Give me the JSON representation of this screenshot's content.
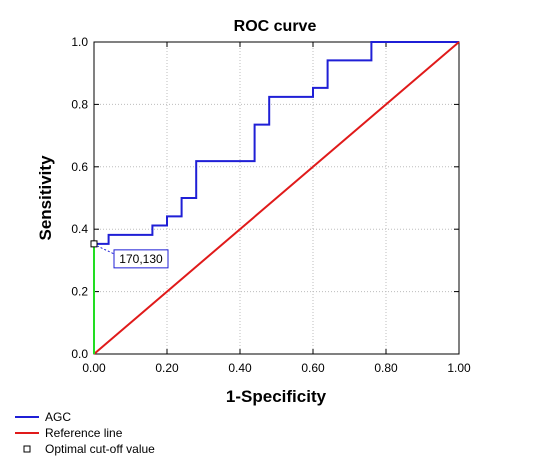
{
  "chart_data": {
    "type": "line",
    "title": "ROC curve",
    "xlabel": "1-Specificity",
    "ylabel": "Sensitivity",
    "xlim": [
      0,
      1
    ],
    "ylim": [
      0,
      1
    ],
    "x_ticks": [
      "0.00",
      "0.20",
      "0.40",
      "0.60",
      "0.80",
      "1.00"
    ],
    "y_ticks": [
      "0.0",
      "0.2",
      "0.4",
      "0.6",
      "0.8",
      "1.0"
    ],
    "grid": true,
    "series": [
      {
        "name": "AGC",
        "color": "#1f1fd6",
        "points": [
          [
            0.0,
            0.0
          ],
          [
            0.0,
            0.353
          ],
          [
            0.04,
            0.353
          ],
          [
            0.04,
            0.382
          ],
          [
            0.16,
            0.382
          ],
          [
            0.16,
            0.412
          ],
          [
            0.2,
            0.412
          ],
          [
            0.2,
            0.441
          ],
          [
            0.24,
            0.441
          ],
          [
            0.24,
            0.5
          ],
          [
            0.28,
            0.5
          ],
          [
            0.28,
            0.618
          ],
          [
            0.44,
            0.618
          ],
          [
            0.44,
            0.735
          ],
          [
            0.48,
            0.735
          ],
          [
            0.48,
            0.824
          ],
          [
            0.6,
            0.824
          ],
          [
            0.6,
            0.853
          ],
          [
            0.64,
            0.853
          ],
          [
            0.64,
            0.941
          ],
          [
            0.76,
            0.941
          ],
          [
            0.76,
            1.0
          ],
          [
            1.0,
            1.0
          ]
        ]
      },
      {
        "name": "Reference line",
        "color": "#e01a1a",
        "points": [
          [
            0,
            0
          ],
          [
            1,
            1
          ]
        ]
      }
    ],
    "cutoff": {
      "name": "Optimal cut-off value",
      "x": 0.0,
      "y": 0.353,
      "label": "170,130",
      "line_color": "#22dd22"
    },
    "legend": {
      "position": "bottom-left",
      "entries": [
        {
          "label": "AGC",
          "kind": "line",
          "color": "#1f1fd6"
        },
        {
          "label": "Reference line",
          "kind": "line",
          "color": "#e01a1a"
        },
        {
          "label": "Optimal cut-off value",
          "kind": "square",
          "color": "#000000"
        }
      ]
    }
  }
}
